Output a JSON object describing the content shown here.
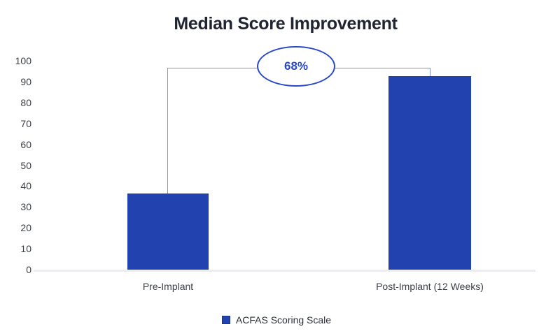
{
  "chart_data": {
    "type": "bar",
    "title": "Median Score Improvement",
    "categories": [
      "Pre-Implant",
      "Post-Implant (12 Weeks)"
    ],
    "values": [
      36.5,
      92.5
    ],
    "series_name": "ACFAS Scoring Scale",
    "xlabel": "",
    "ylabel": "",
    "ylim": [
      0,
      100
    ],
    "yticks": [
      0,
      10,
      20,
      30,
      40,
      50,
      60,
      70,
      80,
      90,
      100
    ],
    "grid": false,
    "legend_position": "bottom",
    "annotation": {
      "text": "68%",
      "shape": "ellipse-callout",
      "connects_bars": [
        "Pre-Implant",
        "Post-Implant (12 Weeks)"
      ]
    }
  },
  "colors": {
    "bar": "#2243af",
    "annotation": "#2948c8",
    "connector_line": "#8093d8",
    "baseline": "#ebedf0",
    "title_text": "#202430",
    "axis_text": "#3b3f46"
  }
}
